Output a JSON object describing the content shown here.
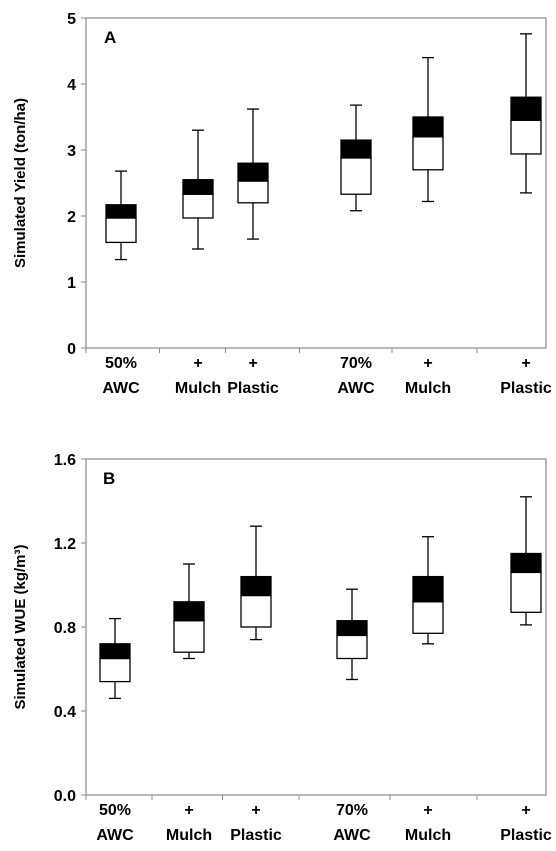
{
  "chart_data": [
    {
      "type": "boxplot",
      "panel_label": "A",
      "ylabel": "Simulated Yield (ton/ha)",
      "ylim": [
        0,
        5
      ],
      "yticks": [
        "0",
        "1",
        "2",
        "3",
        "4",
        "5"
      ],
      "categories": [
        {
          "line1": "50%",
          "line2": "AWC"
        },
        {
          "line1": "+",
          "line2": "Mulch"
        },
        {
          "line1": "+",
          "line2": "Plastic"
        },
        {
          "line1": "70%",
          "line2": "AWC"
        },
        {
          "line1": "+",
          "line2": "Mulch"
        },
        {
          "line1": "+",
          "line2": "Plastic"
        }
      ],
      "boxes": [
        {
          "min": 1.34,
          "q1": 1.6,
          "median": 1.97,
          "q3": 2.17,
          "max": 2.68
        },
        {
          "min": 1.5,
          "q1": 1.97,
          "median": 2.33,
          "q3": 2.55,
          "max": 3.3
        },
        {
          "min": 1.65,
          "q1": 2.2,
          "median": 2.53,
          "q3": 2.8,
          "max": 3.62
        },
        {
          "min": 2.08,
          "q1": 2.33,
          "median": 2.88,
          "q3": 3.15,
          "max": 3.68
        },
        {
          "min": 2.22,
          "q1": 2.7,
          "median": 3.2,
          "q3": 3.5,
          "max": 4.4
        },
        {
          "min": 2.35,
          "q1": 2.94,
          "median": 3.45,
          "q3": 3.8,
          "max": 4.76
        }
      ],
      "colors": {
        "lower_box": "#ffffff",
        "upper_box": "#000000"
      }
    },
    {
      "type": "boxplot",
      "panel_label": "B",
      "ylabel": "Simulated WUE (kg/m³)",
      "ylim": [
        0,
        1.6
      ],
      "yticks": [
        "0.0",
        "0.4",
        "0.8",
        "1.2",
        "1.6"
      ],
      "categories": [
        {
          "line1": "50%",
          "line2": "AWC"
        },
        {
          "line1": "+",
          "line2": "Mulch"
        },
        {
          "line1": "+",
          "line2": "Plastic"
        },
        {
          "line1": "70%",
          "line2": "AWC"
        },
        {
          "line1": "+",
          "line2": "Mulch"
        },
        {
          "line1": "+",
          "line2": "Plastic"
        }
      ],
      "boxes": [
        {
          "min": 0.46,
          "q1": 0.54,
          "median": 0.65,
          "q3": 0.72,
          "max": 0.84
        },
        {
          "min": 0.65,
          "q1": 0.68,
          "median": 0.83,
          "q3": 0.92,
          "max": 1.1
        },
        {
          "min": 0.74,
          "q1": 0.8,
          "median": 0.95,
          "q3": 1.04,
          "max": 1.28
        },
        {
          "min": 0.55,
          "q1": 0.65,
          "median": 0.76,
          "q3": 0.83,
          "max": 0.98
        },
        {
          "min": 0.72,
          "q1": 0.77,
          "median": 0.92,
          "q3": 1.04,
          "max": 1.23
        },
        {
          "min": 0.81,
          "q1": 0.87,
          "median": 1.06,
          "q3": 1.15,
          "max": 1.42
        }
      ],
      "colors": {
        "lower_box": "#ffffff",
        "upper_box": "#000000"
      }
    }
  ]
}
